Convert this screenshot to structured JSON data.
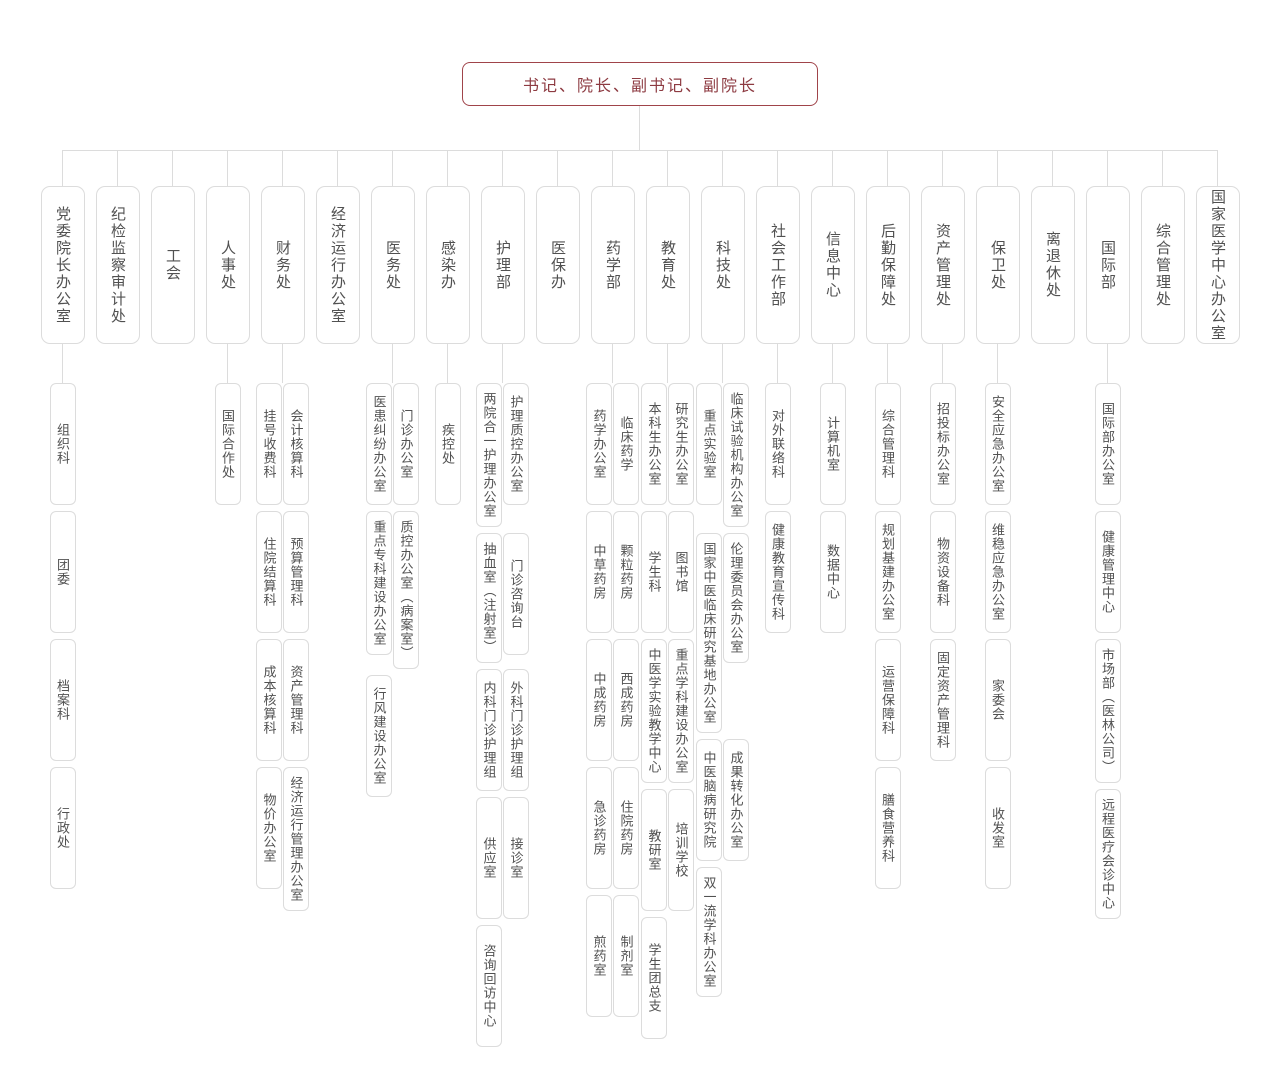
{
  "page": {
    "background": "#ffffff"
  },
  "root": {
    "label": "书记、院长、副书记、副院长",
    "text_color": "#8d3a41",
    "border_color": "#a0444a"
  },
  "style": {
    "connector_color": "#dcdcdc",
    "node_border_color": "#dcdcdc",
    "node_text_color": "#515151"
  },
  "departments": [
    {
      "label": "党委院长办公室",
      "children": {
        "layout": "single",
        "items": [
          "组织科",
          "团委",
          "档案科",
          "行政处"
        ]
      }
    },
    {
      "label": "纪检监察审计处"
    },
    {
      "label": "工会"
    },
    {
      "label": "人事处",
      "children": {
        "layout": "single",
        "items": [
          "国际合作处"
        ]
      }
    },
    {
      "label": "财务处",
      "children": {
        "layout": "double",
        "left": [
          "挂号收费科",
          "住院结算科",
          "成本核算科",
          "物价办公室"
        ],
        "right": [
          "会计核算科",
          "预算管理科",
          "资产管理科",
          "经济运行管理办公室"
        ]
      }
    },
    {
      "label": "经济运行办公室"
    },
    {
      "label": "医务处",
      "children": {
        "layout": "double",
        "left": [
          "医患纠纷办公室",
          "重点专科建设办公室",
          "行风建设办公室"
        ],
        "right": [
          "门诊办公室",
          "质控办公室（病案室）"
        ]
      }
    },
    {
      "label": "感染办",
      "children": {
        "layout": "single",
        "items": [
          "疾控处"
        ]
      }
    },
    {
      "label": "护理部",
      "children": {
        "layout": "double",
        "left": [
          "两院合一护理办公室",
          "抽血室（注射室）",
          "内科门诊护理组",
          "供应室",
          "咨询回访中心"
        ],
        "right": [
          "护理质控办公室",
          "门诊咨询台",
          "外科门诊护理组",
          "接诊室"
        ]
      }
    },
    {
      "label": "医保办"
    },
    {
      "label": "药学部",
      "children": {
        "layout": "double",
        "left": [
          "药学办公室",
          "中草药房",
          "中成药房",
          "急诊药房",
          "煎药室"
        ],
        "right": [
          "临床药学",
          "颗粒药房",
          "西成药房",
          "住院药房",
          "制剂室"
        ]
      }
    },
    {
      "label": "教育处",
      "children": {
        "layout": "double",
        "left": [
          "本科生办公室",
          "学生科",
          "中医学实验教学中心",
          "教研室",
          "学生团总支"
        ],
        "right": [
          "研究生办公室",
          "图书馆",
          "重点学科建设办公室",
          "培训学校"
        ]
      }
    },
    {
      "label": "科技处",
      "children": {
        "layout": "double",
        "left": [
          "重点实验室",
          "国家中医临床研究基地办公室",
          "中医脑病研究院",
          "双一流学科办公室"
        ],
        "right": [
          "临床试验机构办公室",
          "伦理委员会办公室",
          "成果转化办公室"
        ]
      }
    },
    {
      "label": "社会工作部",
      "children": {
        "layout": "single",
        "items": [
          "对外联络科",
          "健康教育宣传科"
        ]
      }
    },
    {
      "label": "信息中心",
      "children": {
        "layout": "single",
        "items": [
          "计算机室",
          "数据中心"
        ]
      }
    },
    {
      "label": "后勤保障处",
      "children": {
        "layout": "single",
        "items": [
          "综合管理科",
          "规划基建办公室",
          "运营保障科",
          "膳食营养科"
        ]
      }
    },
    {
      "label": "资产管理处",
      "children": {
        "layout": "single",
        "items": [
          "招投标办公室",
          "物资设备科",
          "固定资产管理科"
        ]
      }
    },
    {
      "label": "保卫处",
      "children": {
        "layout": "single",
        "items": [
          "安全应急办公室",
          "维稳应急办公室",
          "家委会",
          "收发室"
        ]
      }
    },
    {
      "label": "离退休处"
    },
    {
      "label": "国际部",
      "children": {
        "layout": "single",
        "items": [
          "国际部办公室",
          "健康管理中心",
          "市场部（医林公司）",
          "远程医疗会诊中心"
        ]
      }
    },
    {
      "label": "综合管理处"
    },
    {
      "label": "国家医学中心办公室"
    }
  ]
}
